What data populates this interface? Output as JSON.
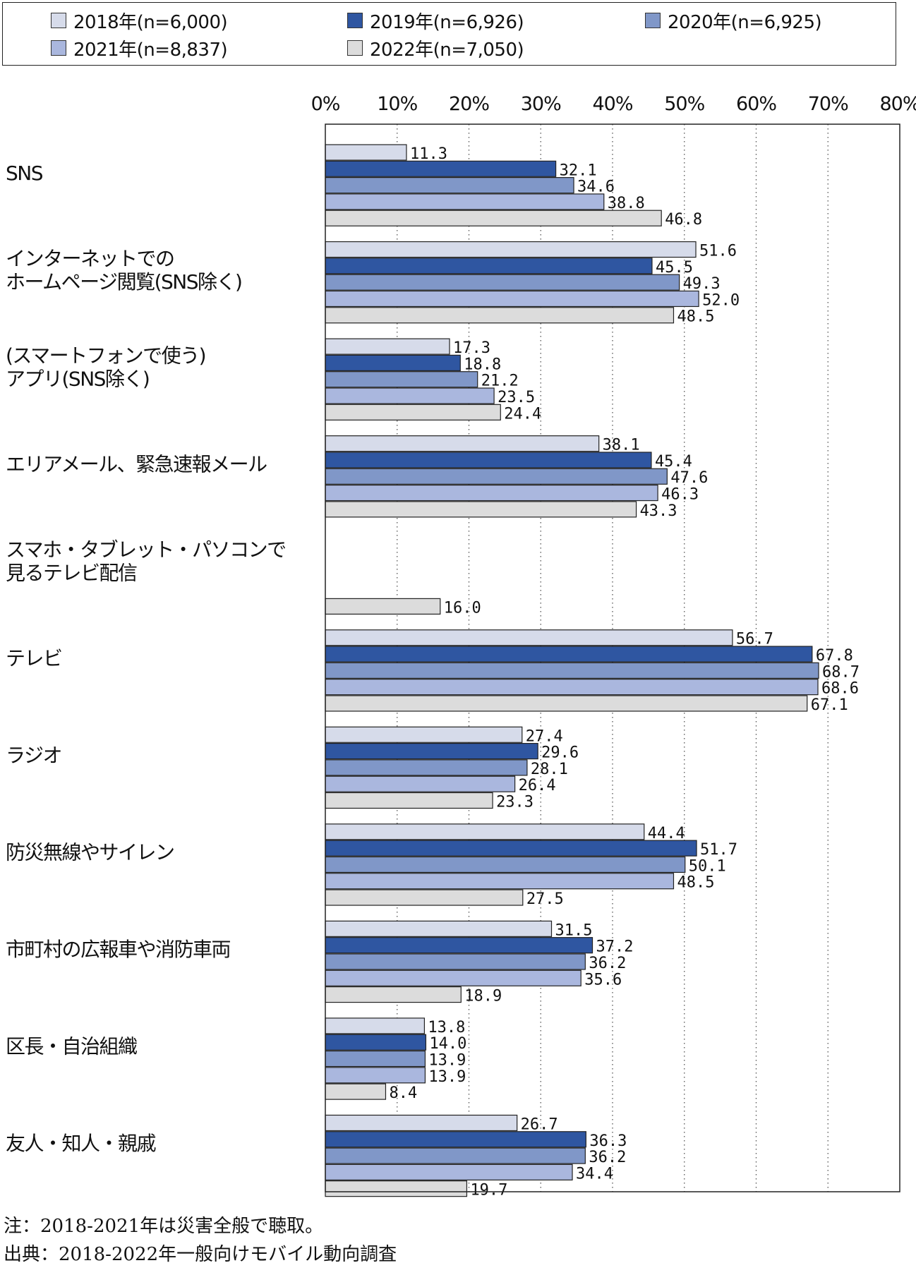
{
  "chart_data": {
    "type": "bar",
    "orientation": "horizontal",
    "xlim": [
      0,
      80
    ],
    "tick_labels": [
      "0%",
      "10%",
      "20%",
      "30%",
      "40%",
      "50%",
      "60%",
      "70%",
      "80%"
    ],
    "grid": "vertical dotted",
    "legend_placement": "top",
    "categories": [
      [
        "SNS"
      ],
      [
        "インターネットでの",
        "ホームページ閲覧(SNS除く)"
      ],
      [
        "(スマートフォンで使う)",
        "アプリ(SNS除く)"
      ],
      [
        "エリアメール、緊急速報メール"
      ],
      [
        "スマホ・タブレット・パソコンで",
        "見るテレビ配信"
      ],
      [
        "テレビ"
      ],
      [
        "ラジオ"
      ],
      [
        "防災無線やサイレン"
      ],
      [
        "市町村の広報車や消防車両"
      ],
      [
        "区長・自治組織"
      ],
      [
        "友人・知人・親戚"
      ]
    ],
    "series": [
      {
        "name": "2018年(n=6,000)",
        "color": "#d6dbea",
        "values": [
          11.3,
          51.6,
          17.3,
          38.1,
          null,
          56.7,
          27.4,
          44.4,
          31.5,
          13.8,
          26.7
        ]
      },
      {
        "name": "2019年(n=6,926)",
        "color": "#2f56a1",
        "values": [
          32.1,
          45.5,
          18.8,
          45.4,
          null,
          67.8,
          29.6,
          51.7,
          37.2,
          14.0,
          36.3
        ]
      },
      {
        "name": "2020年(n=6,925)",
        "color": "#8097c8",
        "values": [
          34.6,
          49.3,
          21.2,
          47.6,
          null,
          68.7,
          28.1,
          50.1,
          36.2,
          13.9,
          36.2
        ]
      },
      {
        "name": "2021年(n=8,837)",
        "color": "#aab7de",
        "values": [
          38.8,
          52.0,
          23.5,
          46.3,
          null,
          68.6,
          26.4,
          48.5,
          35.6,
          13.9,
          34.4
        ]
      },
      {
        "name": "2022年(n=7,050)",
        "color": "#dcdcdc",
        "values": [
          46.8,
          48.5,
          24.4,
          43.3,
          16.0,
          67.1,
          23.3,
          27.5,
          18.9,
          8.4,
          19.7
        ]
      }
    ]
  },
  "footnotes": {
    "note": "注：2018-2021年は災害全般で聴取。",
    "source": "出典：2018-2022年一般向けモバイル動向調査"
  }
}
